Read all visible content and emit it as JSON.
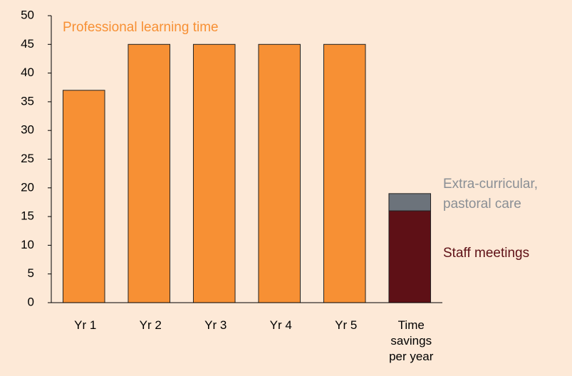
{
  "chart_data": {
    "type": "bar",
    "stacked": true,
    "categories": [
      "Yr 1",
      "Yr 2",
      "Yr 3",
      "Yr 4",
      "Yr 5",
      "Time savings per year"
    ],
    "series": [
      {
        "name": "Professional learning time",
        "color": "#f79034",
        "values": [
          37,
          45,
          45,
          45,
          45,
          null
        ]
      },
      {
        "name": "Staff meetings",
        "color": "#5e1016",
        "values": [
          null,
          null,
          null,
          null,
          null,
          16
        ]
      },
      {
        "name": "Extra-curricular, pastoral care",
        "color": "#6c737b",
        "values": [
          null,
          null,
          null,
          null,
          null,
          3
        ]
      }
    ],
    "ylim": [
      0,
      50
    ],
    "yticks": [
      0,
      5,
      10,
      15,
      20,
      25,
      30,
      35,
      40,
      45,
      50
    ],
    "grid": false
  }
}
